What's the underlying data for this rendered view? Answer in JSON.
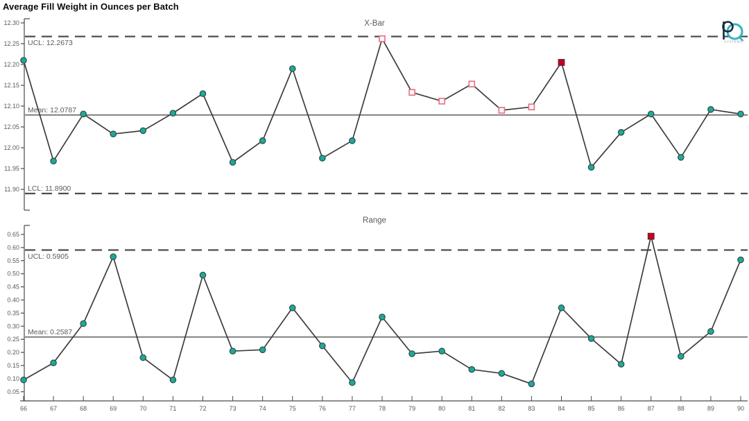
{
  "page_title": "Average Fill Weight in Ounces per Batch",
  "logo": {
    "subtext": "SYSTEMS",
    "accent_color": "#2fb3c3",
    "dark_color": "#16293e"
  },
  "colors": {
    "series_line": "#3c3c3c",
    "control_line": "#4d4d4d",
    "axis_line": "#4a4a4a",
    "axis_text": "#5a5a5a",
    "marker_fill": "#1fa899",
    "marker_stroke": "#2a4d48",
    "violation_open_fill": "#ffffff",
    "violation_open_stroke": "#e87288",
    "violation_fill": "#c50025",
    "violation_fill_stroke": "#6d1f27"
  },
  "x_axis": {
    "tick_labels": [
      "66",
      "67",
      "68",
      "69",
      "70",
      "71",
      "72",
      "73",
      "74",
      "75",
      "76",
      "77",
      "78",
      "79",
      "80",
      "81",
      "82",
      "83",
      "84",
      "85",
      "86",
      "87",
      "88",
      "89",
      "90"
    ]
  },
  "chart_data": [
    {
      "id": "xbar",
      "type": "line",
      "title": "X-Bar",
      "xlabel": "",
      "ylabel": "",
      "categories": [
        66,
        67,
        68,
        69,
        70,
        71,
        72,
        73,
        74,
        75,
        76,
        77,
        78,
        79,
        80,
        81,
        82,
        83,
        84,
        85,
        86,
        87,
        88,
        89,
        90
      ],
      "series": [
        {
          "name": "X-Bar",
          "values": [
            12.21,
            11.968,
            12.081,
            12.033,
            12.041,
            12.083,
            12.13,
            11.965,
            12.017,
            12.19,
            11.975,
            12.017,
            12.262,
            12.133,
            12.112,
            12.153,
            12.09,
            12.098,
            12.205,
            11.953,
            12.037,
            12.081,
            11.977,
            12.092,
            12.081
          ]
        }
      ],
      "marker_types": [
        "circle",
        "circle",
        "circle",
        "circle",
        "circle",
        "circle",
        "circle",
        "circle",
        "circle",
        "circle",
        "circle",
        "circle",
        "square-open",
        "square-open",
        "square-open",
        "square-open",
        "square-open",
        "square-open",
        "square-filled",
        "circle",
        "circle",
        "circle",
        "circle",
        "circle",
        "circle"
      ],
      "control_lines": {
        "ucl": {
          "label": "UCL: 12.2673",
          "value": 12.2673
        },
        "mean": {
          "label": "Mean: 12.0787",
          "value": 12.0787
        },
        "lcl": {
          "label": "LCL: 11.8900",
          "value": 11.89
        }
      },
      "ylim": [
        11.88,
        12.315
      ],
      "ytick_values": [
        12.3,
        12.25,
        12.2,
        12.15,
        12.1,
        12.05,
        12.0,
        11.95,
        11.9
      ],
      "ytick_labels": [
        "12.30",
        "12.25",
        "12.20",
        "12.15",
        "12.10",
        "12.05",
        "12.00",
        "11.95",
        "11.90"
      ],
      "grid": false,
      "legend": false
    },
    {
      "id": "range",
      "type": "line",
      "title": "Range",
      "xlabel": "",
      "ylabel": "",
      "categories": [
        66,
        67,
        68,
        69,
        70,
        71,
        72,
        73,
        74,
        75,
        76,
        77,
        78,
        79,
        80,
        81,
        82,
        83,
        84,
        85,
        86,
        87,
        88,
        89,
        90
      ],
      "series": [
        {
          "name": "Range",
          "values": [
            0.095,
            0.16,
            0.31,
            0.565,
            0.18,
            0.095,
            0.495,
            0.205,
            0.21,
            0.37,
            0.225,
            0.085,
            0.335,
            0.195,
            0.205,
            0.135,
            0.12,
            0.08,
            0.37,
            0.253,
            0.155,
            0.643,
            0.185,
            0.28,
            0.553
          ]
        }
      ],
      "marker_types": [
        "circle",
        "circle",
        "circle",
        "circle",
        "circle",
        "circle",
        "circle",
        "circle",
        "circle",
        "circle",
        "circle",
        "circle",
        "circle",
        "circle",
        "circle",
        "circle",
        "circle",
        "circle",
        "circle",
        "circle",
        "circle",
        "square-filled",
        "circle",
        "circle",
        "circle"
      ],
      "control_lines": {
        "ucl": {
          "label": "UCL: 0.5905",
          "value": 0.5905
        },
        "mean": {
          "label": "Mean: 0.2587",
          "value": 0.2587
        }
      },
      "ylim": [
        0.015,
        0.685
      ],
      "ytick_values": [
        0.65,
        0.6,
        0.55,
        0.5,
        0.45,
        0.4,
        0.35,
        0.3,
        0.25,
        0.2,
        0.15,
        0.1,
        0.05
      ],
      "ytick_labels": [
        "0.65",
        "0.60",
        "0.55",
        "0.50",
        "0.45",
        "0.40",
        "0.35",
        "0.30",
        "0.25",
        "0.20",
        "0.15",
        "0.10",
        "0.05"
      ],
      "grid": false,
      "legend": false
    }
  ]
}
